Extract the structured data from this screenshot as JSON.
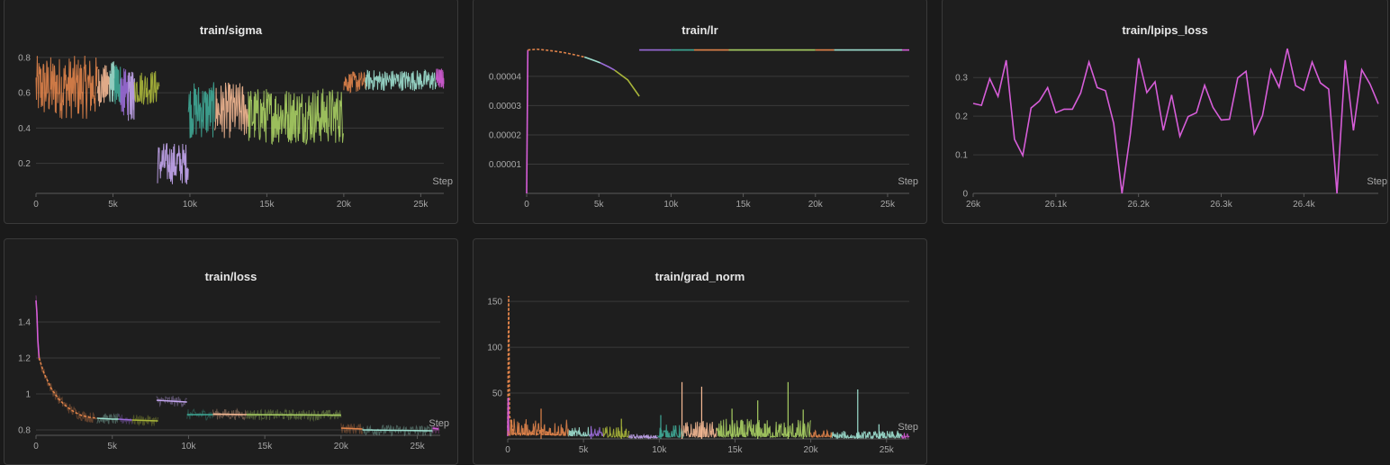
{
  "colors": {
    "background": "#1a1a1a",
    "panel": "#1e1e1e",
    "grid": "#3a3a3a",
    "text": "#e6e6e6",
    "tick": "#a8a8a8",
    "run_orange": "#e0834a",
    "run_salmon": "#f2a07b",
    "run_purple": "#9a6bd8",
    "run_lavender": "#c4a6f0",
    "run_olive": "#a8b53a",
    "run_teal": "#3fa896",
    "run_mint": "#9ddfcf",
    "run_green": "#a8cf63",
    "run_peach": "#f5b994",
    "run_magenta": "#d65dd8"
  },
  "chart_data": [
    {
      "id": "sigma",
      "type": "line",
      "title": "train/sigma",
      "xlabel": "Step",
      "ylabel": "",
      "xlim": [
        0,
        26500
      ],
      "ylim": [
        0.03,
        0.85
      ],
      "xticks": [
        0,
        5000,
        10000,
        15000,
        20000,
        25000
      ],
      "xtick_labels": [
        "0",
        "5k",
        "10k",
        "15k",
        "20k",
        "25k"
      ],
      "yticks": [
        0.2,
        0.4,
        0.6,
        0.8
      ],
      "ytick_labels": [
        "0.2",
        "0.4",
        "0.6",
        "0.8"
      ],
      "grid": true,
      "series": [
        {
          "color": "#e0834a",
          "x0": 0,
          "x1": 4000,
          "mean": 0.63,
          "spread": 0.18
        },
        {
          "color": "#f5b994",
          "x0": 4000,
          "x1": 4800,
          "mean": 0.64,
          "spread": 0.12
        },
        {
          "color": "#9ddfcf",
          "x0": 4800,
          "x1": 5100,
          "mean": 0.66,
          "spread": 0.12
        },
        {
          "color": "#3fa896",
          "x0": 5100,
          "x1": 5500,
          "mean": 0.65,
          "spread": 0.12
        },
        {
          "color": "#9a6bd8",
          "x0": 5500,
          "x1": 6000,
          "mean": 0.6,
          "spread": 0.14
        },
        {
          "color": "#c4a6f0",
          "x0": 6000,
          "x1": 6400,
          "mean": 0.58,
          "spread": 0.14
        },
        {
          "color": "#a8b53a",
          "x0": 6400,
          "x1": 8000,
          "mean": 0.63,
          "spread": 0.1
        },
        {
          "color": "#c4a6f0",
          "x0": 7900,
          "x1": 9900,
          "mean": 0.2,
          "spread": 0.12
        },
        {
          "color": "#3fa896",
          "x0": 9900,
          "x1": 11600,
          "mean": 0.5,
          "spread": 0.16
        },
        {
          "color": "#f5b994",
          "x0": 11600,
          "x1": 13800,
          "mean": 0.5,
          "spread": 0.16
        },
        {
          "color": "#a8cf63",
          "x0": 13800,
          "x1": 20000,
          "mean": 0.47,
          "spread": 0.16
        },
        {
          "color": "#e0834a",
          "x0": 20000,
          "x1": 21400,
          "mean": 0.66,
          "spread": 0.06
        },
        {
          "color": "#9ddfcf",
          "x0": 21400,
          "x1": 26000,
          "mean": 0.67,
          "spread": 0.06
        },
        {
          "color": "#d65dd8",
          "x0": 26000,
          "x1": 26500,
          "mean": 0.68,
          "spread": 0.06
        }
      ]
    },
    {
      "id": "lr",
      "type": "line",
      "title": "train/lr",
      "xlabel": "Step",
      "ylabel": "",
      "xlim": [
        0,
        26500
      ],
      "ylim": [
        0,
        4.95e-05
      ],
      "xticks": [
        0,
        5000,
        10000,
        15000,
        20000,
        25000
      ],
      "xtick_labels": [
        "0",
        "5k",
        "10k",
        "15k",
        "20k",
        "25k"
      ],
      "yticks": [
        1e-05,
        2e-05,
        3e-05,
        4e-05
      ],
      "ytick_labels": [
        "0.00001",
        "0.00002",
        "0.00003",
        "0.00004"
      ],
      "grid": true,
      "series": [
        {
          "color": "#d65dd8",
          "points": [
            [
              0,
              0
            ],
            [
              80,
              4.9e-05
            ]
          ]
        },
        {
          "color": "#e0834a",
          "dashed": true,
          "points": [
            [
              80,
              4.9e-05
            ],
            [
              700,
              4.93e-05
            ],
            [
              1500,
              4.89e-05
            ],
            [
              2500,
              4.82e-05
            ],
            [
              3500,
              4.72e-05
            ],
            [
              4000,
              4.66e-05
            ]
          ]
        },
        {
          "color": "#9ddfcf",
          "points": [
            [
              4000,
              4.66e-05
            ],
            [
              4800,
              4.52e-05
            ],
            [
              5100,
              4.46e-05
            ]
          ]
        },
        {
          "color": "#9a6bd8",
          "points": [
            [
              5100,
              4.46e-05
            ],
            [
              5700,
              4.32e-05
            ],
            [
              6100,
              4.21e-05
            ]
          ]
        },
        {
          "color": "#a8b53a",
          "points": [
            [
              6100,
              4.21e-05
            ],
            [
              7000,
              3.88e-05
            ],
            [
              7800,
              3.32e-05
            ]
          ]
        },
        {
          "color": "#9a6bd8",
          "points": [
            [
              7800,
              4.9e-05
            ],
            [
              10000,
              4.9e-05
            ]
          ]
        },
        {
          "color": "#3fa896",
          "points": [
            [
              10000,
              4.9e-05
            ],
            [
              11600,
              4.9e-05
            ]
          ]
        },
        {
          "color": "#e0834a",
          "points": [
            [
              11600,
              4.9e-05
            ],
            [
              14000,
              4.9e-05
            ]
          ]
        },
        {
          "color": "#a8cf63",
          "points": [
            [
              14000,
              4.9e-05
            ],
            [
              20000,
              4.9e-05
            ]
          ]
        },
        {
          "color": "#e0834a",
          "points": [
            [
              20000,
              4.9e-05
            ],
            [
              21300,
              4.9e-05
            ]
          ]
        },
        {
          "color": "#9ddfcf",
          "points": [
            [
              21300,
              4.9e-05
            ],
            [
              26000,
              4.9e-05
            ]
          ]
        },
        {
          "color": "#d65dd8",
          "points": [
            [
              26000,
              4.9e-05
            ],
            [
              26500,
              4.9e-05
            ]
          ]
        }
      ]
    },
    {
      "id": "lpips",
      "type": "line",
      "title": "train/lpips_loss",
      "xlabel": "Step",
      "ylabel": "",
      "xlim": [
        26000,
        26490
      ],
      "ylim": [
        0,
        0.375
      ],
      "xticks": [
        26000,
        26100,
        26200,
        26300,
        26400
      ],
      "xtick_labels": [
        "26k",
        "26.1k",
        "26.2k",
        "26.3k",
        "26.4k"
      ],
      "yticks": [
        0,
        0.1,
        0.2,
        0.3
      ],
      "ytick_labels": [
        "0",
        "0.1",
        "0.2",
        "0.3"
      ],
      "grid": true,
      "series": [
        {
          "color": "#d65dd8",
          "points": [
            [
              26000,
              0.233
            ],
            [
              26010,
              0.228
            ],
            [
              26020,
              0.297
            ],
            [
              26030,
              0.251
            ],
            [
              26040,
              0.345
            ],
            [
              26050,
              0.14
            ],
            [
              26060,
              0.098
            ],
            [
              26070,
              0.221
            ],
            [
              26080,
              0.239
            ],
            [
              26090,
              0.274
            ],
            [
              26100,
              0.209
            ],
            [
              26110,
              0.218
            ],
            [
              26120,
              0.218
            ],
            [
              26130,
              0.26
            ],
            [
              26140,
              0.34
            ],
            [
              26150,
              0.274
            ],
            [
              26160,
              0.266
            ],
            [
              26170,
              0.181
            ],
            [
              26180,
              0
            ],
            [
              26190,
              0.152
            ],
            [
              26200,
              0.35
            ],
            [
              26210,
              0.261
            ],
            [
              26220,
              0.289
            ],
            [
              26230,
              0.163
            ],
            [
              26240,
              0.255
            ],
            [
              26250,
              0.148
            ],
            [
              26260,
              0.199
            ],
            [
              26270,
              0.209
            ],
            [
              26280,
              0.28
            ],
            [
              26290,
              0.223
            ],
            [
              26300,
              0.19
            ],
            [
              26310,
              0.192
            ],
            [
              26320,
              0.299
            ],
            [
              26330,
              0.316
            ],
            [
              26340,
              0.155
            ],
            [
              26350,
              0.202
            ],
            [
              26360,
              0.32
            ],
            [
              26370,
              0.275
            ],
            [
              26380,
              0.375
            ],
            [
              26390,
              0.279
            ],
            [
              26400,
              0.267
            ],
            [
              26410,
              0.34
            ],
            [
              26420,
              0.286
            ],
            [
              26430,
              0.27
            ],
            [
              26440,
              0
            ],
            [
              26450,
              0.345
            ],
            [
              26460,
              0.163
            ],
            [
              26470,
              0.32
            ],
            [
              26480,
              0.283
            ],
            [
              26490,
              0.232
            ]
          ]
        }
      ]
    },
    {
      "id": "loss",
      "type": "line",
      "title": "train/loss",
      "xlabel": "Step",
      "ylabel": "",
      "xlim": [
        0,
        26500
      ],
      "ylim": [
        0.77,
        1.55
      ],
      "xticks": [
        0,
        5000,
        10000,
        15000,
        20000,
        25000
      ],
      "xtick_labels": [
        "0",
        "5k",
        "10k",
        "15k",
        "20k",
        "25k"
      ],
      "yticks": [
        0.8,
        1,
        1.2,
        1.4
      ],
      "ytick_labels": [
        "0.8",
        "1",
        "1.2",
        "1.4"
      ],
      "grid": true,
      "series": [
        {
          "color": "#d65dd8",
          "points": [
            [
              0,
              1.52
            ],
            [
              60,
              1.45
            ],
            [
              120,
              1.3
            ],
            [
              200,
              1.2
            ]
          ]
        },
        {
          "color": "#e0834a",
          "dashed": true,
          "points": [
            [
              200,
              1.2
            ],
            [
              500,
              1.12
            ],
            [
              1000,
              1.03
            ],
            [
              1500,
              0.97
            ],
            [
              2000,
              0.93
            ],
            [
              2500,
              0.9
            ],
            [
              3000,
              0.88
            ],
            [
              3500,
              0.87
            ],
            [
              4000,
              0.865
            ]
          ]
        },
        {
          "color": "#9ddfcf",
          "points": [
            [
              4000,
              0.865
            ],
            [
              5000,
              0.86
            ],
            [
              5400,
              0.86
            ]
          ]
        },
        {
          "color": "#9a6bd8",
          "points": [
            [
              5400,
              0.86
            ],
            [
              6300,
              0.855
            ]
          ]
        },
        {
          "color": "#a8b53a",
          "points": [
            [
              6300,
              0.855
            ],
            [
              8000,
              0.85
            ]
          ]
        },
        {
          "color": "#c4a6f0",
          "points": [
            [
              7900,
              0.965
            ],
            [
              9900,
              0.955
            ]
          ]
        },
        {
          "color": "#3fa896",
          "points": [
            [
              9900,
              0.885
            ],
            [
              11600,
              0.885
            ]
          ]
        },
        {
          "color": "#f5b994",
          "points": [
            [
              11600,
              0.888
            ],
            [
              13800,
              0.885
            ]
          ]
        },
        {
          "color": "#a8cf63",
          "points": [
            [
              13800,
              0.885
            ],
            [
              20000,
              0.882
            ]
          ]
        },
        {
          "color": "#e0834a",
          "points": [
            [
              20000,
              0.81
            ],
            [
              21400,
              0.805
            ]
          ]
        },
        {
          "color": "#9ddfcf",
          "points": [
            [
              21400,
              0.8
            ],
            [
              26000,
              0.795
            ]
          ]
        },
        {
          "color": "#d65dd8",
          "points": [
            [
              26000,
              0.81
            ],
            [
              26400,
              0.805
            ]
          ]
        }
      ]
    },
    {
      "id": "grad",
      "type": "line",
      "title": "train/grad_norm",
      "xlabel": "Step",
      "ylabel": "",
      "xlim": [
        0,
        26500
      ],
      "ylim": [
        0,
        157
      ],
      "xticks": [
        0,
        5000,
        10000,
        15000,
        20000,
        25000
      ],
      "xtick_labels": [
        "0",
        "5k",
        "10k",
        "15k",
        "20k",
        "25k"
      ],
      "yticks": [
        50,
        100,
        150
      ],
      "ytick_labels": [
        "50",
        "100",
        "150"
      ],
      "grid": true,
      "series": [
        {
          "color": "#e0834a",
          "dashed": true,
          "points": [
            [
              0,
              12
            ],
            [
              60,
              156
            ],
            [
              120,
              25
            ],
            [
              400,
              6
            ],
            [
              4000,
              4
            ]
          ]
        },
        {
          "color": "#d65dd8",
          "points": [
            [
              0,
              3
            ],
            [
              30,
              45
            ],
            [
              60,
              5
            ]
          ]
        }
      ],
      "spikes": [
        {
          "x": 2200,
          "y": 33,
          "color": "#e0834a"
        },
        {
          "x": 5500,
          "y": 14,
          "color": "#9a6bd8"
        },
        {
          "x": 7500,
          "y": 22,
          "color": "#a8b53a"
        },
        {
          "x": 10100,
          "y": 26,
          "color": "#3fa896"
        },
        {
          "x": 11500,
          "y": 62,
          "color": "#f5b994"
        },
        {
          "x": 12800,
          "y": 57,
          "color": "#f5b994"
        },
        {
          "x": 14800,
          "y": 33,
          "color": "#a8cf63"
        },
        {
          "x": 16500,
          "y": 42,
          "color": "#a8cf63"
        },
        {
          "x": 18500,
          "y": 62,
          "color": "#a8cf63"
        },
        {
          "x": 19500,
          "y": 32,
          "color": "#a8cf63"
        },
        {
          "x": 23100,
          "y": 54,
          "color": "#9ddfcf"
        },
        {
          "x": 24500,
          "y": 16,
          "color": "#9ddfcf"
        }
      ],
      "noise": [
        {
          "color": "#e0834a",
          "x0": 0,
          "x1": 4000,
          "base": 4,
          "amp": 18
        },
        {
          "color": "#9ddfcf",
          "x0": 4000,
          "x1": 5400,
          "base": 3,
          "amp": 10
        },
        {
          "color": "#9a6bd8",
          "x0": 5400,
          "x1": 6300,
          "base": 3,
          "amp": 10
        },
        {
          "color": "#a8b53a",
          "x0": 6300,
          "x1": 8000,
          "base": 2,
          "amp": 12
        },
        {
          "color": "#c4a6f0",
          "x0": 8000,
          "x1": 9900,
          "base": 1,
          "amp": 4
        },
        {
          "color": "#3fa896",
          "x0": 9900,
          "x1": 11600,
          "base": 2,
          "amp": 14
        },
        {
          "color": "#f5b994",
          "x0": 11600,
          "x1": 13800,
          "base": 2,
          "amp": 18
        },
        {
          "color": "#a8cf63",
          "x0": 13800,
          "x1": 20000,
          "base": 2,
          "amp": 20
        },
        {
          "color": "#e0834a",
          "x0": 20000,
          "x1": 21400,
          "base": 2,
          "amp": 8
        },
        {
          "color": "#9ddfcf",
          "x0": 21400,
          "x1": 26000,
          "base": 1,
          "amp": 8
        },
        {
          "color": "#d65dd8",
          "x0": 26000,
          "x1": 26500,
          "base": 1,
          "amp": 6
        }
      ]
    }
  ]
}
